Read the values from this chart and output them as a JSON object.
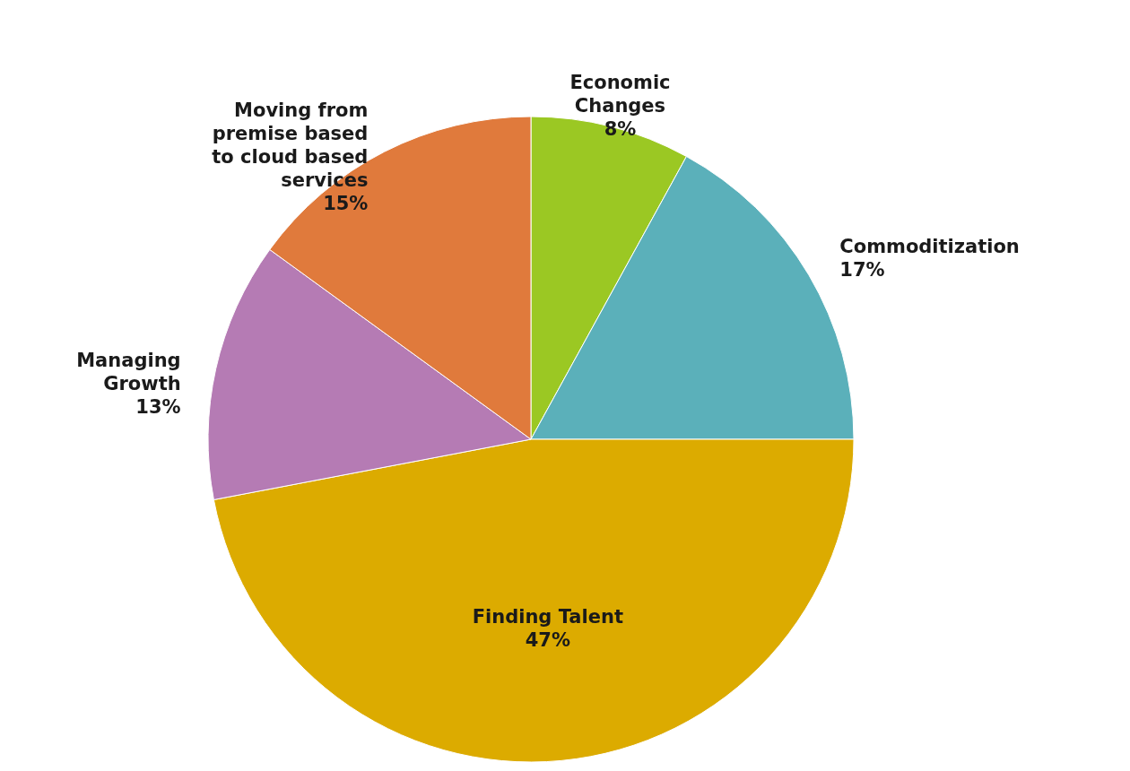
{
  "chart_data": {
    "type": "pie",
    "categories": [
      "Economic Changes",
      "Commoditization",
      "Finding Talent",
      "Managing Growth",
      "Moving from premise based to cloud based services"
    ],
    "values": [
      8,
      17,
      47,
      13,
      15
    ],
    "value_labels": [
      "8%",
      "17%",
      "47%",
      "13%",
      "15%"
    ],
    "colors": [
      "#9bc823",
      "#5bb0ba",
      "#dcab00",
      "#b57bb4",
      "#e07a3c"
    ]
  }
}
